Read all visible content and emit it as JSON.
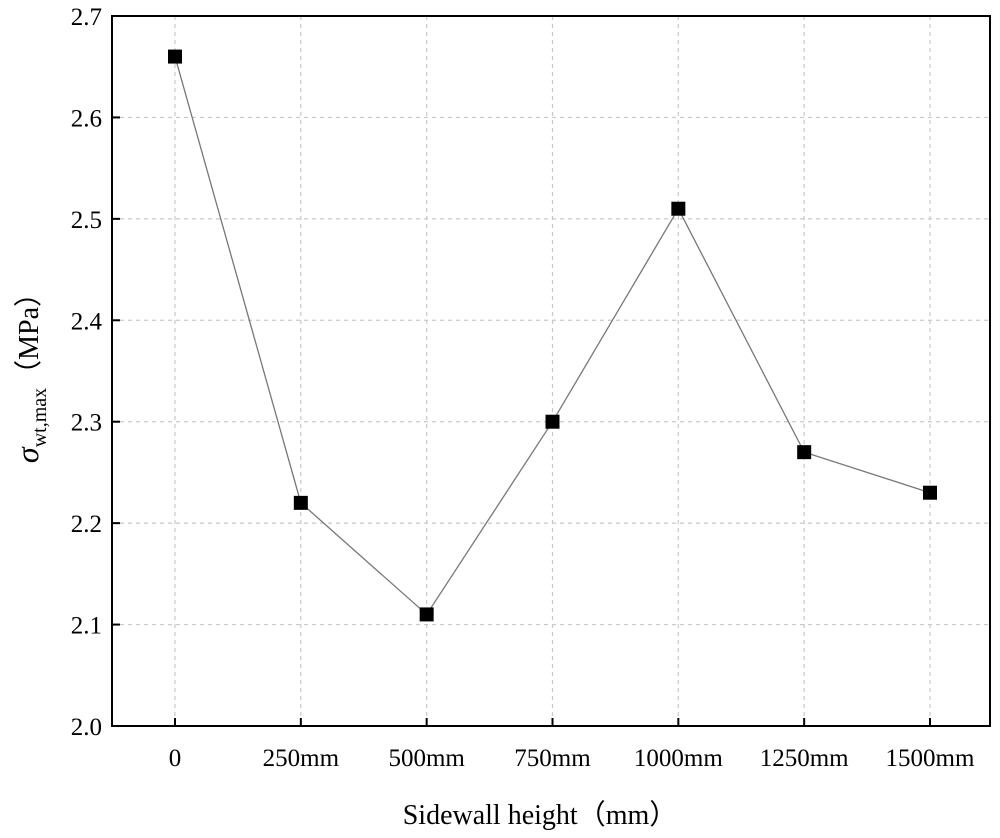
{
  "chart_data": {
    "type": "line",
    "categories": [
      "0",
      "250mm",
      "500mm",
      "750mm",
      "1000mm",
      "1250mm",
      "1500mm"
    ],
    "series": [
      {
        "name": "σwt,max",
        "values": [
          2.66,
          2.22,
          2.11,
          2.3,
          2.51,
          2.27,
          2.23
        ]
      }
    ],
    "ylim": [
      2.0,
      2.7
    ],
    "yticks": [
      "2.0",
      "2.1",
      "2.2",
      "2.3",
      "2.4",
      "2.5",
      "2.6",
      "2.7"
    ],
    "ytick_values": [
      2.0,
      2.1,
      2.2,
      2.3,
      2.4,
      2.5,
      2.6,
      2.7
    ],
    "xlabel": "Sidewall height（mm）",
    "ylabel_symbol": "σ",
    "ylabel_subscript": "wt,max",
    "ylabel_unit": "（MPa）",
    "grid": true,
    "marker": "square",
    "line_color": "#777777",
    "marker_color": "#000000"
  }
}
